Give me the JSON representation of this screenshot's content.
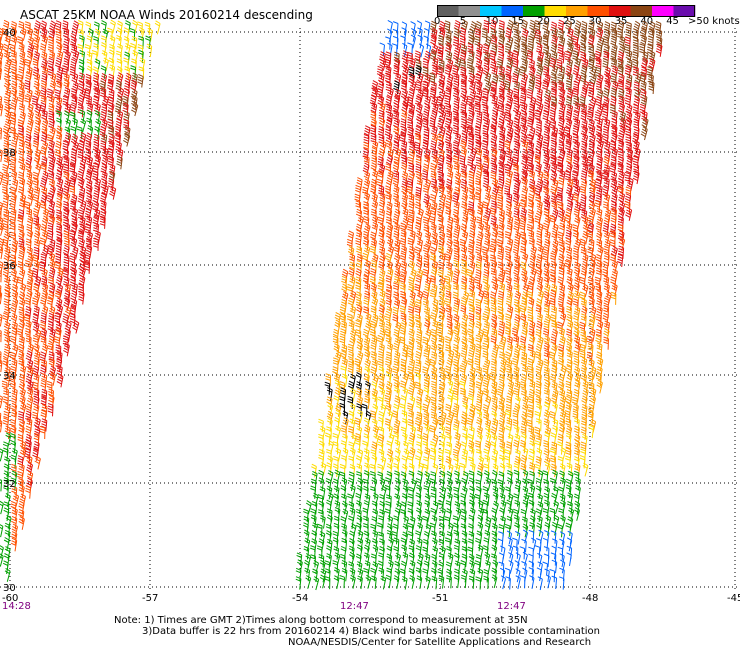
{
  "title": "ASCAT 25KM NOAA Winds 20160214 descending",
  "colorbar": {
    "labels": [
      "0",
      "5",
      "10",
      "15",
      "20",
      "25",
      "30",
      "35",
      "40",
      "45"
    ],
    "colors": [
      "#606060",
      "#909090",
      "#00c8ff",
      "#0064ff",
      "#00a000",
      "#ffdc00",
      "#ffa000",
      "#ff5000",
      "#e01010",
      "#8b4513",
      "#ff00ff",
      "#6a0dad"
    ],
    "units": ">50 knots"
  },
  "grid": {
    "lat_labels": [
      "40",
      "38",
      "36",
      "34",
      "32",
      "30"
    ],
    "lon_labels": [
      "-60",
      "-57",
      "-54",
      "-51",
      "-48",
      "-45"
    ]
  },
  "times": [
    "14:28",
    "12:47",
    "12:47"
  ],
  "notes": [
    "Note: 1) Times are GMT 2)Times along bottom correspond to measurement at 35N",
    "3)Data buffer is 22 hrs from 20160214 4) Black wind barbs indicate possible contamination",
    "NOAA/NESDIS/Center for Satellite Applications and Research"
  ]
}
